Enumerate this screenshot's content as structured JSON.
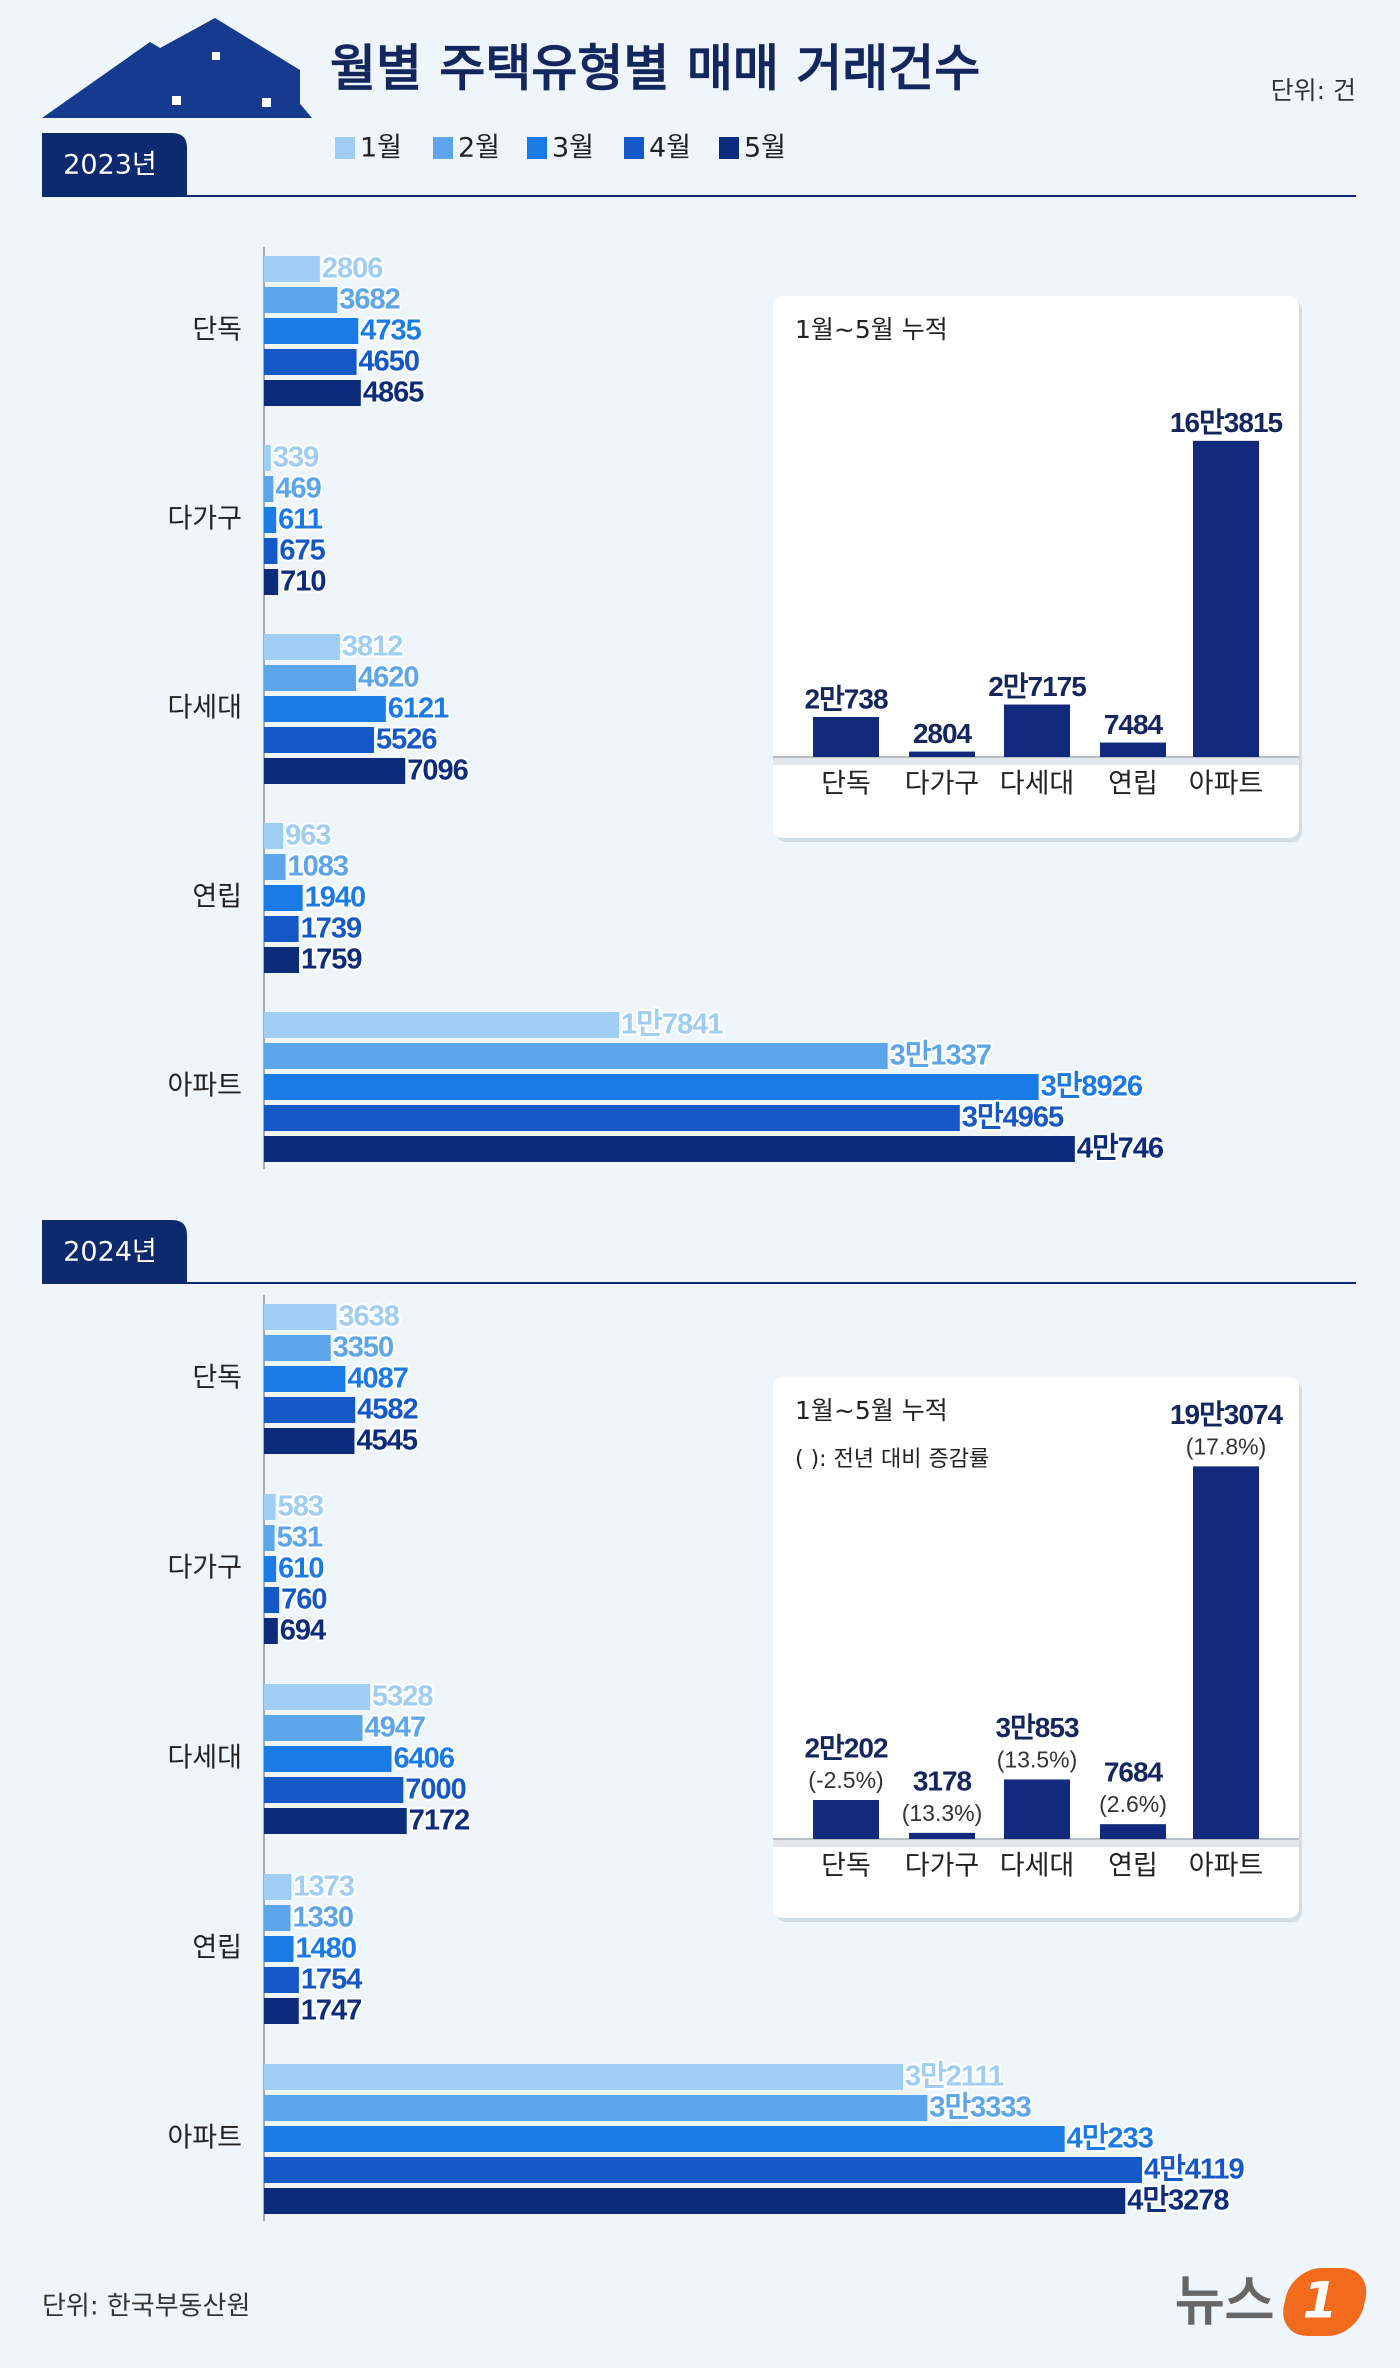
{
  "title": "월별 주택유형별 매매 거래건수",
  "unit": "단위: 건",
  "source": "단위: 한국부동산원",
  "logo_text": "뉴스",
  "logo_mark": "1",
  "chart_data": [
    {
      "type": "bar",
      "orientation": "horizontal",
      "label": "2023년",
      "categories": [
        "단독",
        "다가구",
        "다세대",
        "연립",
        "아파트"
      ],
      "series": [
        {
          "name": "1월",
          "color": "#9fcdf3",
          "values": [
            2806,
            339,
            3812,
            963,
            17841
          ],
          "value_labels": [
            "2806",
            "339",
            "3812",
            "963",
            "1만7841"
          ]
        },
        {
          "name": "2월",
          "color": "#5ca5ea",
          "values": [
            3682,
            469,
            4620,
            1083,
            31337
          ],
          "value_labels": [
            "3682",
            "469",
            "4620",
            "1083",
            "3만1337"
          ]
        },
        {
          "name": "3월",
          "color": "#1a7be6",
          "values": [
            4735,
            611,
            6121,
            1940,
            38926
          ],
          "value_labels": [
            "4735",
            "611",
            "6121",
            "1940",
            "3만8926"
          ]
        },
        {
          "name": "4월",
          "color": "#1457c6",
          "values": [
            4650,
            675,
            5526,
            1739,
            34965
          ],
          "value_labels": [
            "4650",
            "675",
            "5526",
            "1739",
            "3만4965"
          ]
        },
        {
          "name": "5월",
          "color": "#0c2b7a",
          "values": [
            4865,
            710,
            7096,
            1759,
            40746
          ],
          "value_labels": [
            "4865",
            "710",
            "7096",
            "1759",
            "4만746"
          ]
        }
      ]
    },
    {
      "type": "bar",
      "title": "1월~5월 누적",
      "color": "#132a7c",
      "categories": [
        "단독",
        "다가구",
        "다세대",
        "연립",
        "아파트"
      ],
      "values": [
        20738,
        2804,
        27175,
        7484,
        163815
      ],
      "value_labels": [
        "2만738",
        "2804",
        "2만7175",
        "7484",
        "16만3815"
      ]
    },
    {
      "type": "bar",
      "orientation": "horizontal",
      "label": "2024년",
      "categories": [
        "단독",
        "다가구",
        "다세대",
        "연립",
        "아파트"
      ],
      "series": [
        {
          "color": "#9fcdf3",
          "values": [
            3638,
            583,
            5328,
            1373,
            32111
          ],
          "value_labels": [
            "3638",
            "583",
            "5328",
            "1373",
            "3만2111"
          ]
        },
        {
          "color": "#5ca5ea",
          "values": [
            3350,
            531,
            4947,
            1330,
            33333
          ],
          "value_labels": [
            "3350",
            "531",
            "4947",
            "1330",
            "3만3333"
          ]
        },
        {
          "color": "#1a7be6",
          "values": [
            4087,
            610,
            6406,
            1480,
            40233
          ],
          "value_labels": [
            "4087",
            "610",
            "6406",
            "1480",
            "4만233"
          ]
        },
        {
          "color": "#1457c6",
          "values": [
            4582,
            760,
            7000,
            1754,
            44119
          ],
          "value_labels": [
            "4582",
            "760",
            "7000",
            "1754",
            "4만4119"
          ]
        },
        {
          "color": "#0c2b7a",
          "values": [
            4545,
            694,
            7172,
            1747,
            43278
          ],
          "value_labels": [
            "4545",
            "694",
            "7172",
            "1747",
            "4만3278"
          ]
        }
      ]
    },
    {
      "type": "bar",
      "title": "1월~5월 누적",
      "note": "(   ): 전년 대비 증감률",
      "color": "#132a7c",
      "categories": [
        "단독",
        "다가구",
        "다세대",
        "연립",
        "아파트"
      ],
      "values": [
        20202,
        3178,
        30853,
        7684,
        193074
      ],
      "value_labels": [
        "2만202",
        "3178",
        "3만853",
        "7684",
        "19만3074"
      ],
      "change": [
        -2.5,
        13.3,
        13.5,
        2.6,
        17.8
      ],
      "change_labels": [
        "(-2.5%)",
        "(13.3%)",
        "(13.5%)",
        "(2.6%)",
        "(17.8%)"
      ]
    }
  ]
}
